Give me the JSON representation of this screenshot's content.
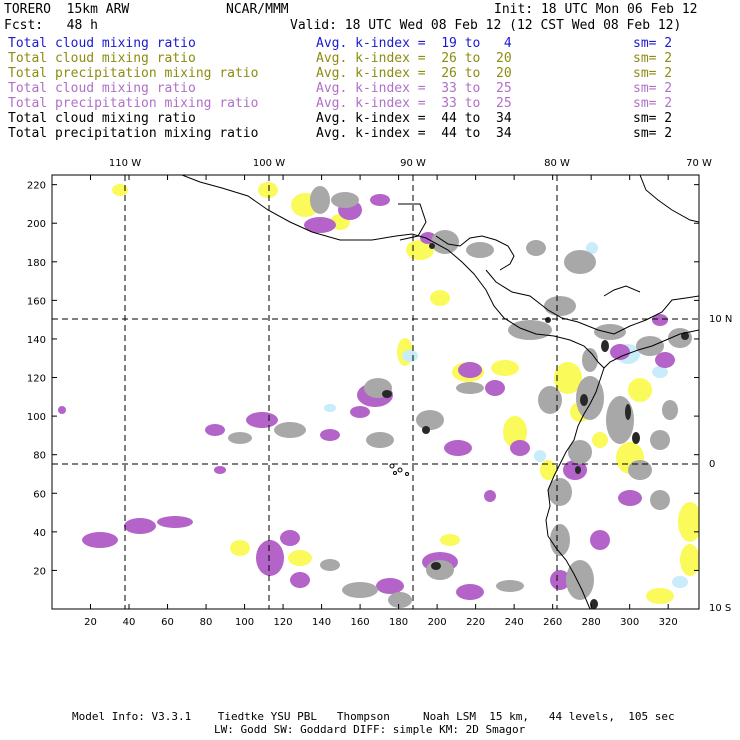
{
  "header": {
    "model": "TORERO  15km ARW",
    "org": "NCAR/MMM",
    "init": "Init: 18 UTC Mon 06 Feb 12",
    "fcst": "Fcst:   48 h",
    "valid": "Valid: 18 UTC Wed 08 Feb 12 (12 CST Wed 08 Feb 12)"
  },
  "legend": [
    {
      "name": "Total cloud mixing ratio",
      "kindex": "Avg. k-index =  19 to   4",
      "sm": "sm= 2",
      "color": "#1a1ad0"
    },
    {
      "name": "Total cloud mixing ratio",
      "kindex": "Avg. k-index =  26 to  20",
      "sm": "sm= 2",
      "color": "#8c8c10"
    },
    {
      "name": "Total precipitation mixing ratio",
      "kindex": "Avg. k-index =  26 to  20",
      "sm": "sm= 2",
      "color": "#8c8c10"
    },
    {
      "name": "Total cloud mixing ratio",
      "kindex": "Avg. k-index =  33 to  25",
      "sm": "sm= 2",
      "color": "#b070c8"
    },
    {
      "name": "Total precipitation mixing ratio",
      "kindex": "Avg. k-index =  33 to  25",
      "sm": "sm= 2",
      "color": "#b070c8"
    },
    {
      "name": "Total cloud mixing ratio",
      "kindex": "Avg. k-index =  44 to  34",
      "sm": "sm= 2",
      "color": "#000000"
    },
    {
      "name": "Total precipitation mixing ratio",
      "kindex": "Avg. k-index =  44 to  34",
      "sm": "sm= 2",
      "color": "#000000"
    }
  ],
  "map": {
    "lon_labels": [
      "110 W",
      "100 W",
      "90 W",
      "80 W",
      "70 W"
    ],
    "lat_labels": [
      "10 N",
      "0",
      "10 S"
    ],
    "x_ticks": [
      "20",
      "40",
      "60",
      "80",
      "100",
      "120",
      "140",
      "160",
      "180",
      "200",
      "220",
      "240",
      "260",
      "280",
      "300",
      "320"
    ],
    "y_ticks": [
      "20",
      "40",
      "60",
      "80",
      "100",
      "120",
      "140",
      "160",
      "180",
      "200",
      "220"
    ],
    "colors": {
      "yellow": "#fafa5a",
      "lightblue": "#c8ecfa",
      "purple": "#b464c8",
      "gray": "#a8a8a8",
      "dark": "#282828"
    }
  },
  "footer": {
    "line1": "Model Info: V3.3.1    Tiedtke YSU PBL   Thompson     Noah LSM  15 km,   44 levels,  105 sec",
    "line2": "LW: Godd SW: Goddard DIFF: simple KM: 2D Smagor"
  }
}
